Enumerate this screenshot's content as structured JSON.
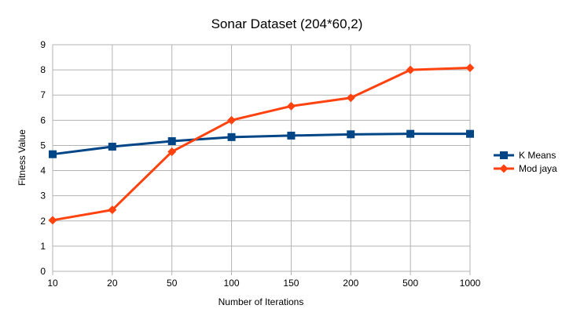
{
  "chart_data": {
    "type": "line",
    "title": "Sonar Dataset (204*60,2)",
    "xlabel": "Number of Iterations",
    "ylabel": "Fitness Value",
    "categories": [
      "10",
      "20",
      "50",
      "100",
      "150",
      "200",
      "500",
      "1000"
    ],
    "ylim": [
      0,
      9
    ],
    "yticks": [
      "0",
      "1",
      "2",
      "3",
      "4",
      "5",
      "6",
      "7",
      "8",
      "9"
    ],
    "grid": true,
    "legend_position": "right",
    "series": [
      {
        "name": "K Means",
        "color": "#004586",
        "marker": "square",
        "values": [
          4.65,
          4.95,
          5.17,
          5.33,
          5.39,
          5.44,
          5.46,
          5.46
        ]
      },
      {
        "name": "Mod jaya",
        "color": "#ff420e",
        "marker": "diamond",
        "values": [
          2.03,
          2.44,
          4.75,
          6.0,
          6.56,
          6.89,
          8.0,
          8.08
        ]
      }
    ]
  }
}
